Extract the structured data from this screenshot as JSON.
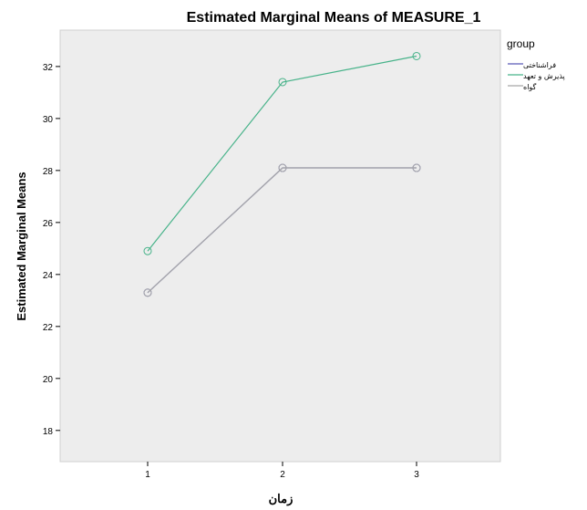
{
  "chart_data": {
    "type": "line",
    "title": "Estimated Marginal Means of MEASURE_1",
    "xlabel": "زمان",
    "ylabel": "Estimated Marginal Means",
    "categories": [
      "1",
      "2",
      "3"
    ],
    "ylim": [
      16.8,
      33.4
    ],
    "yticks": [
      18,
      20,
      22,
      24,
      26,
      28,
      30,
      32
    ],
    "legend_title": "group",
    "legend_position": "right",
    "grid": false,
    "series": [
      {
        "name": "فراشناختی",
        "values": [
          23.3,
          28.1,
          28.1
        ],
        "color": "#5b5bb8",
        "marker": "circle"
      },
      {
        "name": "پذیرش و تعهد",
        "values": [
          24.9,
          31.4,
          32.4
        ],
        "color": "#48b38a",
        "marker": "circle"
      },
      {
        "name": "گواه",
        "values": [
          23.3,
          28.1,
          28.1
        ],
        "color": "#a8a8a8",
        "marker": "circle"
      }
    ]
  }
}
